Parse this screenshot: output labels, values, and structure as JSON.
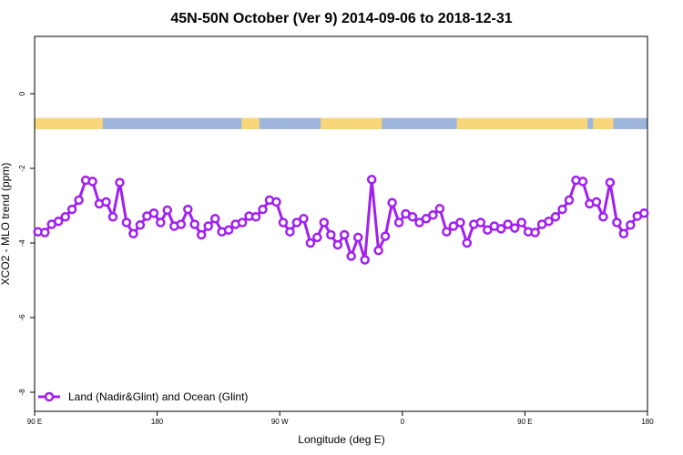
{
  "chart_data": {
    "type": "line",
    "title": "45N-50N October (Ver 9)   2014-09-06 to 2018-12-31",
    "xlabel": "Longitude (deg E)",
    "ylabel": "XCO2 - MLO trend (ppm)",
    "x_ticks": [
      {
        "value": 90,
        "label": "90 E"
      },
      {
        "value": 180,
        "label": "180"
      },
      {
        "value": 270,
        "label": "90 W"
      },
      {
        "value": 360,
        "label": "0"
      },
      {
        "value": 450,
        "label": "90 E"
      },
      {
        "value": 540,
        "label": "180"
      }
    ],
    "y_ticks": [
      0,
      -2,
      -4,
      -6,
      -8
    ],
    "xlim": [
      90,
      540
    ],
    "ylim": [
      -8.4,
      1.5
    ],
    "grid": false,
    "legend_position": "bottom-left",
    "series": [
      {
        "name": "Land (Nadir&Glint) and Ocean (Glint)",
        "color": "#a020f0",
        "x": [
          92.5,
          97.5,
          102.5,
          107.5,
          112.5,
          117.5,
          122.5,
          127.5,
          132.5,
          137.5,
          142.5,
          147.5,
          152.5,
          157.5,
          162.5,
          167.5,
          172.5,
          177.5,
          182.5,
          187.5,
          192.5,
          197.5,
          202.5,
          207.5,
          212.5,
          217.5,
          222.5,
          227.5,
          232.5,
          237.5,
          242.5,
          247.5,
          252.5,
          257.5,
          262.5,
          267.5,
          272.5,
          277.5,
          282.5,
          287.5,
          292.5,
          297.5,
          302.5,
          307.5,
          312.5,
          317.5,
          322.5,
          327.5,
          332.5,
          337.5,
          342.5,
          347.5,
          352.5,
          357.5,
          362.5,
          367.5,
          372.5,
          377.5,
          382.5,
          387.5,
          392.5,
          397.5,
          402.5,
          407.5,
          412.5,
          417.5,
          422.5,
          427.5,
          432.5,
          437.5,
          442.5,
          447.5,
          452.5,
          457.5,
          462.5,
          467.5,
          472.5,
          477.5,
          482.5,
          487.5,
          492.5,
          497.5,
          502.5,
          507.5,
          512.5,
          517.5,
          522.5,
          527.5,
          532.5,
          537.5
        ],
        "values": [
          -3.7,
          -3.72,
          -3.5,
          -3.42,
          -3.3,
          -3.1,
          -2.85,
          -2.32,
          -2.35,
          -2.95,
          -2.9,
          -3.3,
          -2.38,
          -3.45,
          -3.75,
          -3.52,
          -3.28,
          -3.2,
          -3.45,
          -3.12,
          -3.55,
          -3.5,
          -3.1,
          -3.5,
          -3.78,
          -3.55,
          -3.35,
          -3.7,
          -3.65,
          -3.5,
          -3.45,
          -3.28,
          -3.3,
          -3.1,
          -2.85,
          -2.9,
          -3.45,
          -3.7,
          -3.45,
          -3.35,
          -4.0,
          -3.85,
          -3.45,
          -3.78,
          -4.05,
          -3.78,
          -4.35,
          -3.85,
          -4.45,
          -2.3,
          -4.2,
          -3.82,
          -2.92,
          -3.45,
          -3.22,
          -3.3,
          -3.45,
          -3.35,
          -3.25,
          -3.08,
          -3.7,
          -3.55,
          -3.45,
          -4.0,
          -3.5,
          -3.45,
          -3.65,
          -3.55,
          -3.62,
          -3.5,
          -3.6,
          -3.45,
          -3.7,
          -3.72,
          -3.5,
          -3.42,
          -3.3,
          -3.1,
          -2.85,
          -2.32,
          -2.35,
          -2.95,
          -2.9,
          -3.3,
          -2.38,
          -3.45,
          -3.75,
          -3.52,
          -3.28,
          -3.2
        ]
      }
    ],
    "land_ocean_strip": {
      "y_range": [
        -0.65,
        -0.95
      ],
      "land_color": "#f8d77a",
      "ocean_color": "#9db5dc",
      "land_segments": [
        [
          90,
          140
        ],
        [
          242,
          255
        ],
        [
          300,
          345
        ],
        [
          400,
          496
        ],
        [
          500,
          515
        ]
      ]
    }
  }
}
